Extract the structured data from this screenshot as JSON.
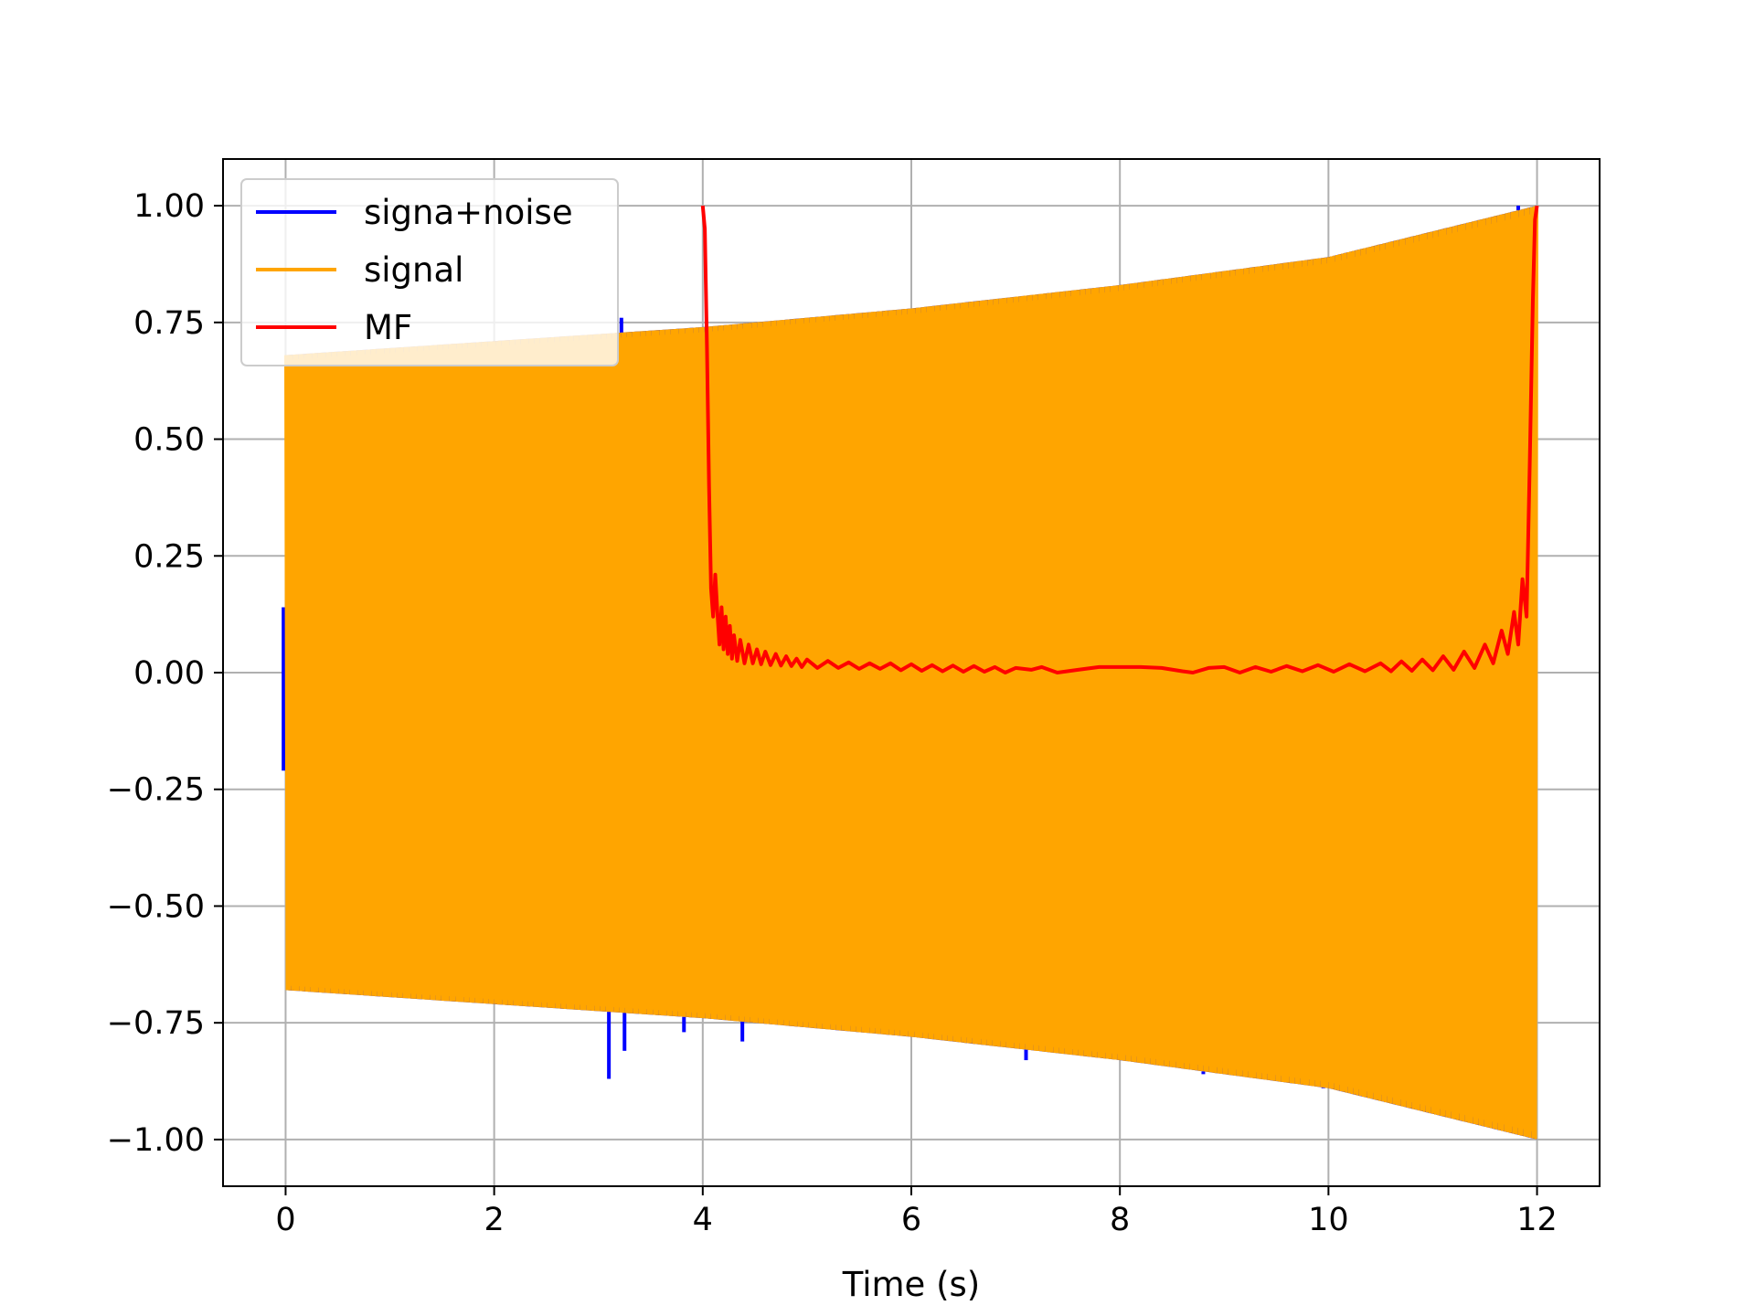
{
  "chart_data": {
    "type": "line",
    "title": "",
    "xlabel": "Time (s)",
    "ylabel": "",
    "xlim": [
      -0.6,
      12.6
    ],
    "ylim": [
      -1.1,
      1.1
    ],
    "xticks": [
      0,
      2,
      4,
      6,
      8,
      10,
      12
    ],
    "xtick_labels": [
      "0",
      "2",
      "4",
      "6",
      "8",
      "10",
      "12"
    ],
    "yticks": [
      1.0,
      0.75,
      0.5,
      0.25,
      0.0,
      -0.25,
      -0.5,
      -0.75,
      -1.0
    ],
    "ytick_labels": [
      "1.00",
      "0.75",
      "0.50",
      "0.25",
      "0.00",
      "−0.25",
      "−0.50",
      "−0.75",
      "−1.00"
    ],
    "grid": true,
    "legend_position": "top-left",
    "series": [
      {
        "name": "signa+noise",
        "color": "#0000ff",
        "envelope": {
          "x": [
            0,
            2,
            4,
            6,
            8,
            10,
            12
          ],
          "upper": [
            0.68,
            0.71,
            0.74,
            0.78,
            0.83,
            0.89,
            1.0
          ],
          "lower": [
            -0.68,
            -0.71,
            -0.74,
            -0.78,
            -0.83,
            -0.89,
            -1.0
          ]
        },
        "spikes": [
          {
            "x": 3.1,
            "y": -0.87
          },
          {
            "x": 3.25,
            "y": -0.81
          },
          {
            "x": 3.22,
            "y": 0.76
          },
          {
            "x": 3.82,
            "y": -0.77
          },
          {
            "x": 4.38,
            "y": -0.79
          },
          {
            "x": 7.1,
            "y": -0.83
          },
          {
            "x": 8.8,
            "y": -0.86
          },
          {
            "x": 9.95,
            "y": -0.89
          },
          {
            "x": 11.82,
            "y": 1.0
          },
          {
            "x": -0.02,
            "y": -0.21
          },
          {
            "x": -0.02,
            "y": 0.14
          }
        ]
      },
      {
        "name": "signal",
        "color": "#ffa500",
        "envelope": {
          "x": [
            0,
            2,
            4,
            6,
            8,
            10,
            12
          ],
          "upper": [
            0.68,
            0.71,
            0.74,
            0.78,
            0.83,
            0.89,
            1.0
          ],
          "lower": [
            -0.68,
            -0.71,
            -0.74,
            -0.78,
            -0.83,
            -0.89,
            -1.0
          ]
        }
      },
      {
        "name": "MF",
        "color": "#ff0000",
        "x": [
          4.0,
          4.02,
          4.04,
          4.06,
          4.08,
          4.1,
          4.12,
          4.14,
          4.16,
          4.18,
          4.2,
          4.22,
          4.24,
          4.26,
          4.28,
          4.3,
          4.33,
          4.36,
          4.4,
          4.44,
          4.48,
          4.52,
          4.56,
          4.6,
          4.65,
          4.7,
          4.75,
          4.8,
          4.85,
          4.9,
          4.95,
          5.0,
          5.1,
          5.2,
          5.3,
          5.4,
          5.5,
          5.6,
          5.7,
          5.8,
          5.9,
          6.0,
          6.1,
          6.2,
          6.3,
          6.4,
          6.5,
          6.6,
          6.7,
          6.8,
          6.9,
          7.0,
          7.15,
          7.25,
          7.4,
          7.6,
          7.8,
          8.0,
          8.2,
          8.4,
          8.6,
          8.7,
          8.85,
          9.0,
          9.15,
          9.3,
          9.45,
          9.6,
          9.75,
          9.9,
          10.05,
          10.2,
          10.35,
          10.5,
          10.6,
          10.7,
          10.8,
          10.9,
          11.0,
          11.1,
          11.2,
          11.3,
          11.4,
          11.5,
          11.58,
          11.66,
          11.72,
          11.78,
          11.82,
          11.86,
          11.9,
          11.93,
          11.96,
          11.98,
          12.0
        ],
        "y": [
          1.0,
          0.95,
          0.7,
          0.4,
          0.18,
          0.12,
          0.21,
          0.13,
          0.06,
          0.14,
          0.05,
          0.12,
          0.04,
          0.1,
          0.03,
          0.08,
          0.025,
          0.07,
          0.02,
          0.06,
          0.02,
          0.05,
          0.018,
          0.045,
          0.016,
          0.04,
          0.015,
          0.035,
          0.014,
          0.03,
          0.012,
          0.028,
          0.01,
          0.025,
          0.01,
          0.022,
          0.008,
          0.02,
          0.008,
          0.02,
          0.005,
          0.018,
          0.004,
          0.016,
          0.003,
          0.015,
          0.002,
          0.014,
          0.002,
          0.012,
          0.0,
          0.01,
          0.006,
          0.012,
          0.0,
          0.006,
          0.012,
          0.012,
          0.012,
          0.01,
          0.003,
          0.0,
          0.01,
          0.012,
          0.0,
          0.012,
          0.002,
          0.014,
          0.003,
          0.016,
          0.002,
          0.018,
          0.003,
          0.02,
          0.003,
          0.024,
          0.004,
          0.028,
          0.005,
          0.035,
          0.006,
          0.045,
          0.01,
          0.06,
          0.02,
          0.09,
          0.04,
          0.13,
          0.06,
          0.2,
          0.12,
          0.45,
          0.8,
          0.97,
          1.0
        ]
      }
    ]
  }
}
